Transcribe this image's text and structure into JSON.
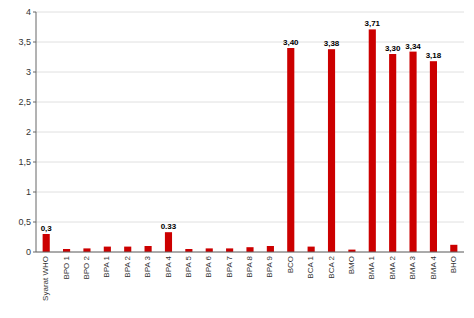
{
  "chart_data": {
    "type": "bar",
    "categories": [
      "Syarat WHO",
      "BPO 1",
      "BPO 2",
      "BPA 1",
      "BPA 2",
      "BPA 3",
      "BPA 4",
      "BPA 5",
      "BPA 6",
      "BPA 7",
      "BPA 8",
      "BPA 9",
      "BCO",
      "BCA 1",
      "BCA 2",
      "BMO",
      "BMA 1",
      "BMA 2",
      "BMA 3",
      "BMA 4",
      "BHO"
    ],
    "values": [
      0.3,
      0.05,
      0.06,
      0.09,
      0.09,
      0.1,
      0.33,
      0.05,
      0.06,
      0.06,
      0.08,
      0.1,
      3.4,
      0.09,
      3.38,
      0.04,
      3.71,
      3.3,
      3.34,
      3.18,
      0.12
    ],
    "value_labels": [
      "0,3",
      null,
      null,
      null,
      null,
      null,
      "0.33",
      null,
      null,
      null,
      null,
      null,
      "3,40",
      null,
      "3,38",
      null,
      "3,71",
      "3,30",
      "3,34",
      "3,18",
      null
    ],
    "color": "#cc0000",
    "ylim": [
      0,
      4.0
    ],
    "yticks": [
      0,
      {
        "value": 0.5,
        "label": "0,5"
      },
      1,
      {
        "value": 1.5,
        "label": "1,5"
      },
      2,
      {
        "value": 2.5,
        "label": "2,5"
      },
      3,
      {
        "value": 3.5,
        "label": "3,5"
      },
      4
    ],
    "grid": true
  }
}
